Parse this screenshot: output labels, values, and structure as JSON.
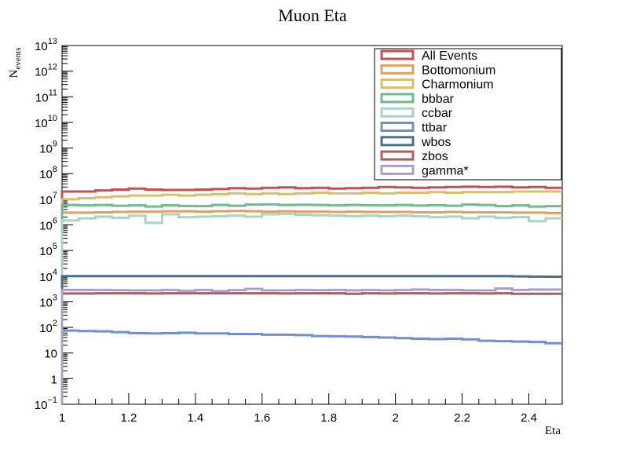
{
  "chart_data": {
    "type": "line",
    "title": "Muon Eta",
    "xlabel": "Eta",
    "ylabel": "N",
    "ylabel_sub": "events",
    "y_scale": "log",
    "xlim": [
      1.0,
      2.5
    ],
    "ylim": [
      0.1,
      10000000000000
    ],
    "x_ticks": [
      "1",
      "1.2",
      "1.4",
      "1.6",
      "1.8",
      "2",
      "2.2",
      "2.4"
    ],
    "y_tick_labels": [
      {
        "base": "10",
        "exp": "−1"
      },
      {
        "base": "1",
        "exp": ""
      },
      {
        "base": "10",
        "exp": ""
      },
      {
        "base": "10",
        "exp": "2"
      },
      {
        "base": "10",
        "exp": "3"
      },
      {
        "base": "10",
        "exp": "4"
      },
      {
        "base": "10",
        "exp": "5"
      },
      {
        "base": "10",
        "exp": "6"
      },
      {
        "base": "10",
        "exp": "7"
      },
      {
        "base": "10",
        "exp": "8"
      },
      {
        "base": "10",
        "exp": "9"
      },
      {
        "base": "10",
        "exp": "10"
      },
      {
        "base": "10",
        "exp": "11"
      },
      {
        "base": "10",
        "exp": "12"
      },
      {
        "base": "10",
        "exp": "13"
      }
    ],
    "grid": false,
    "legend_position": "top-right",
    "bin_edges": [
      1.0,
      1.05,
      1.1,
      1.15,
      1.2,
      1.25,
      1.3,
      1.35,
      1.4,
      1.45,
      1.5,
      1.55,
      1.6,
      1.65,
      1.7,
      1.75,
      1.8,
      1.85,
      1.9,
      1.95,
      2.0,
      2.05,
      2.1,
      2.15,
      2.2,
      2.25,
      2.3,
      2.35,
      2.4,
      2.45,
      2.5
    ],
    "series": [
      {
        "name": "All Events",
        "color": "#c94f4f",
        "values": [
          20000000,
          20000000,
          22000000,
          24000000,
          26000000,
          24000000,
          23000000,
          23000000,
          24000000,
          25000000,
          27000000,
          26000000,
          28000000,
          29000000,
          27000000,
          28000000,
          26000000,
          27000000,
          28000000,
          30000000,
          29000000,
          28000000,
          29000000,
          30000000,
          31000000,
          30000000,
          31000000,
          29000000,
          30000000,
          28000000
        ]
      },
      {
        "name": "Bottomonium",
        "color": "#e0a060",
        "values": [
          3000000,
          3000000,
          3100000,
          3200000,
          3300000,
          3300000,
          3400000,
          3400000,
          3300000,
          3400000,
          3500000,
          3400000,
          3300000,
          3400000,
          3300000,
          3300000,
          3200000,
          3300000,
          3200000,
          3200000,
          3200000,
          3100000,
          3100000,
          3200000,
          3100000,
          3100000,
          3100000,
          3000000,
          3000000,
          2900000
        ]
      },
      {
        "name": "Charmonium",
        "color": "#d6c06a",
        "values": [
          10000000,
          11000000,
          12000000,
          13000000,
          14000000,
          14000000,
          15000000,
          14000000,
          15000000,
          16000000,
          17000000,
          16000000,
          17000000,
          16000000,
          17000000,
          18000000,
          17000000,
          17000000,
          18000000,
          17000000,
          18000000,
          18000000,
          19000000,
          18000000,
          19000000,
          19000000,
          19000000,
          20000000,
          20000000,
          20000000
        ]
      },
      {
        "name": "bbbar",
        "color": "#6dbb8f",
        "values": [
          6000000,
          5800000,
          6000000,
          5600000,
          5800000,
          5200000,
          5800000,
          5500000,
          5400000,
          6000000,
          5600000,
          6200000,
          6300000,
          6000000,
          6100000,
          6000000,
          5800000,
          6000000,
          5900000,
          5800000,
          6000000,
          5700000,
          5900000,
          5600000,
          6200000,
          6000000,
          5400000,
          5800000,
          5200000,
          5400000
        ]
      },
      {
        "name": "ccbar",
        "color": "#a8d5c3",
        "values": [
          1500000,
          1800000,
          2100000,
          1900000,
          2300000,
          1200000,
          2600000,
          2000000,
          2100000,
          2200000,
          2300000,
          2100000,
          2600000,
          2700000,
          2500000,
          2400000,
          2300000,
          2200000,
          2300000,
          2200000,
          2300000,
          2200000,
          2000000,
          2100000,
          1800000,
          2100000,
          1900000,
          2000000,
          1400000,
          1800000
        ]
      },
      {
        "name": "ttbar",
        "color": "#6f8fd0",
        "values": [
          75,
          72,
          70,
          65,
          60,
          58,
          60,
          62,
          58,
          58,
          55,
          55,
          52,
          52,
          50,
          46,
          45,
          44,
          42,
          40,
          38,
          36,
          35,
          36,
          34,
          30,
          29,
          28,
          27,
          24
        ]
      },
      {
        "name": "wbos",
        "color": "#4a6f8a",
        "values": [
          10000,
          10000,
          10000,
          10000,
          10000,
          10000,
          10000,
          10000,
          10000,
          10000,
          10000,
          10000,
          10000,
          10000,
          10000,
          10000,
          10000,
          10000,
          10000,
          10000,
          10000,
          10000,
          10000,
          10000,
          10000,
          10000,
          10000,
          9800,
          9600,
          9500
        ]
      },
      {
        "name": "zbos",
        "color": "#a85f5f",
        "values": [
          2100,
          2100,
          2150,
          2150,
          2150,
          2100,
          2150,
          2150,
          2150,
          2150,
          2150,
          2150,
          2150,
          2100,
          2150,
          2150,
          2150,
          2050,
          2150,
          2100,
          2150,
          2150,
          2100,
          2150,
          2150,
          2100,
          2150,
          2050,
          2050,
          2050
        ]
      },
      {
        "name": "gamma*",
        "color": "#a8a0c8",
        "values": [
          2900,
          2900,
          2900,
          2850,
          2800,
          2800,
          2900,
          2700,
          2900,
          2600,
          2850,
          3200,
          2800,
          2800,
          2900,
          2850,
          2900,
          2800,
          2900,
          2800,
          2900,
          3000,
          2900,
          2900,
          2800,
          2800,
          3300,
          2900,
          3000,
          3000
        ]
      }
    ]
  }
}
